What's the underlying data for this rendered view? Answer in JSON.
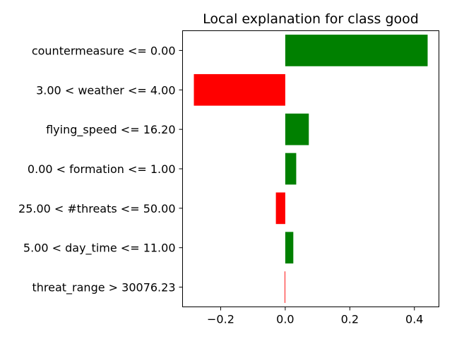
{
  "chart_data": {
    "type": "bar",
    "orientation": "horizontal",
    "title": "Local explanation for class good",
    "xlabel": "",
    "ylabel": "",
    "categories": [
      "countermeasure <= 0.00",
      "3.00 < weather <= 4.00",
      "flying_speed <= 16.20",
      "0.00 < formation <= 1.00",
      "25.00 < #threats <= 50.00",
      "5.00 < day_time <= 11.00",
      "threat_range > 30076.23"
    ],
    "values": [
      0.441,
      -0.283,
      0.073,
      0.034,
      -0.029,
      0.025,
      -0.002
    ],
    "xlim": [
      -0.318,
      0.476
    ],
    "xticks": [
      -0.2,
      0.0,
      0.2,
      0.4
    ],
    "xtick_labels": [
      "−0.2",
      "0.0",
      "0.2",
      "0.4"
    ],
    "grid": false,
    "legend": "none",
    "colors": {
      "positive": "#008000",
      "negative": "#ff0000"
    }
  }
}
